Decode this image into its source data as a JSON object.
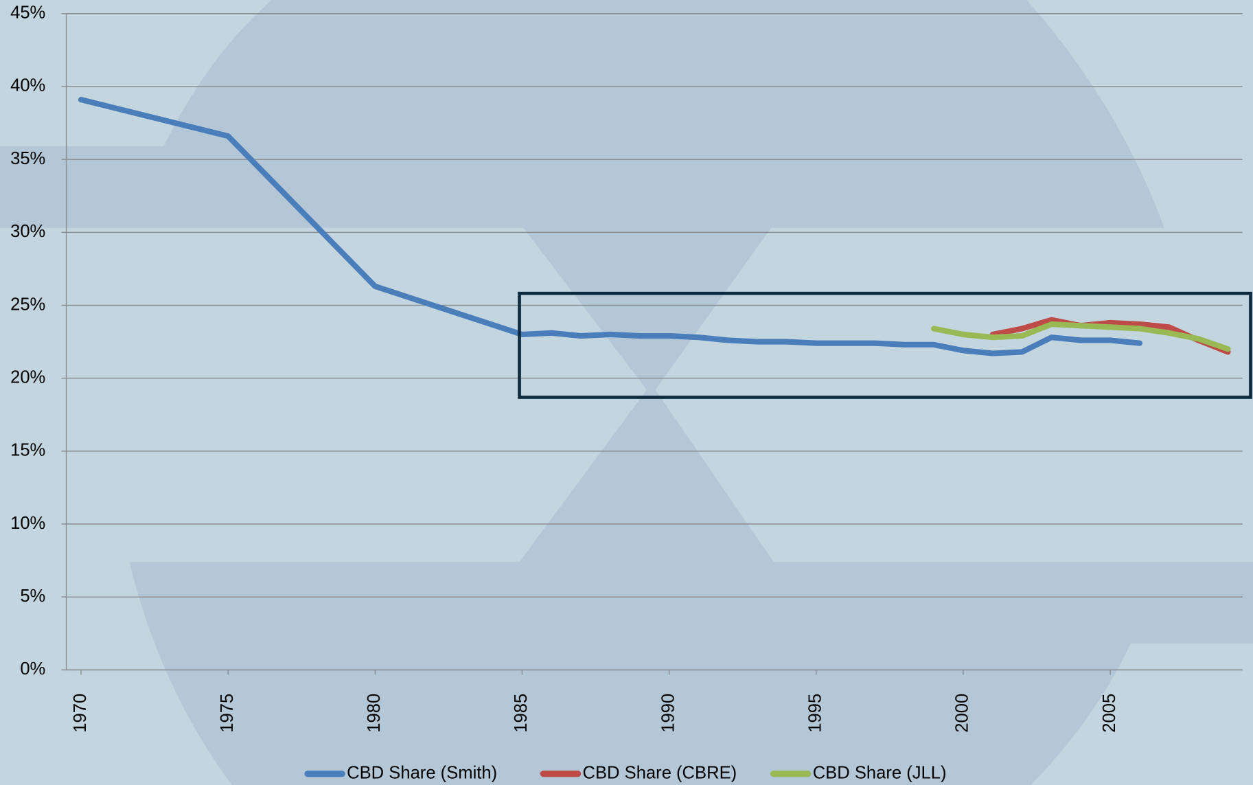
{
  "chart_data": {
    "type": "line",
    "xlim": [
      1969.5,
      2009.5
    ],
    "xticks": [
      1970,
      1975,
      1980,
      1985,
      1990,
      1995,
      2000,
      2005
    ],
    "ylim": [
      0,
      45
    ],
    "yticks": [
      {
        "value": 0,
        "label": "0%"
      },
      {
        "value": 5,
        "label": "5%"
      },
      {
        "value": 10,
        "label": "10%"
      },
      {
        "value": 15,
        "label": "15%"
      },
      {
        "value": 20,
        "label": "20%"
      },
      {
        "value": 25,
        "label": "25%"
      },
      {
        "value": 30,
        "label": "30%"
      },
      {
        "value": 35,
        "label": "35%"
      },
      {
        "value": 40,
        "label": "40%"
      },
      {
        "value": 45,
        "label": "45%"
      }
    ],
    "grid": true,
    "legend": "bottom",
    "series": [
      {
        "name": "CBD Share (Smith)",
        "color": "#4a7ebb",
        "x": [
          1970,
          1975,
          1980,
          1985,
          1986,
          1987,
          1988,
          1989,
          1990,
          1991,
          1992,
          1993,
          1994,
          1995,
          1996,
          1997,
          1998,
          1999,
          2000,
          2001,
          2002,
          2003,
          2004,
          2005,
          2006
        ],
        "values": [
          39.1,
          36.6,
          26.3,
          23.0,
          23.1,
          22.9,
          23.0,
          22.9,
          22.9,
          22.8,
          22.6,
          22.5,
          22.5,
          22.4,
          22.4,
          22.4,
          22.3,
          22.3,
          21.9,
          21.7,
          21.8,
          22.8,
          22.6,
          22.6,
          22.4
        ]
      },
      {
        "name": "CBD Share (CBRE)",
        "color": "#be4b48",
        "x": [
          2001,
          2002,
          2003,
          2004,
          2005,
          2006,
          2007,
          2008,
          2009
        ],
        "values": [
          23.0,
          23.4,
          24.0,
          23.6,
          23.8,
          23.7,
          23.5,
          22.6,
          21.8
        ]
      },
      {
        "name": "CBD Share (JLL)",
        "color": "#98b954",
        "x": [
          1999,
          2000,
          2001,
          2002,
          2003,
          2004,
          2005,
          2006,
          2007,
          2008,
          2009
        ],
        "values": [
          23.4,
          23.0,
          22.8,
          22.9,
          23.7,
          23.6,
          23.5,
          23.4,
          23.1,
          22.7,
          22.0
        ]
      }
    ]
  }
}
